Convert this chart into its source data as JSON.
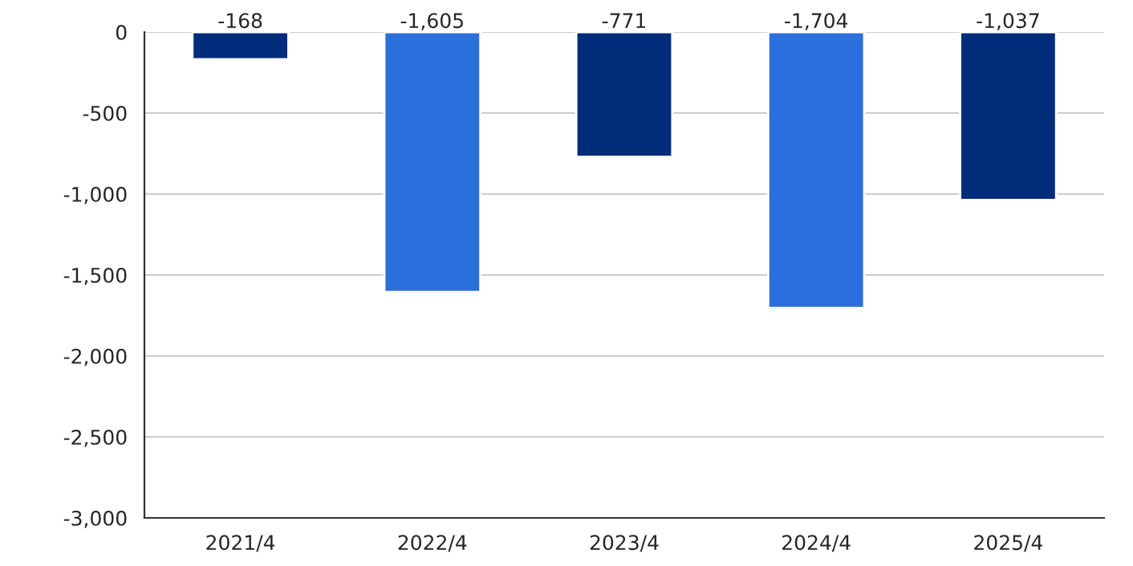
{
  "chart_data": {
    "type": "bar",
    "categories": [
      "2021/4",
      "2022/4",
      "2023/4",
      "2024/4",
      "2025/4"
    ],
    "values": [
      -168,
      -1605,
      -771,
      -1704,
      -1037
    ],
    "colors": [
      "#002d7a",
      "#2a6fdb",
      "#002d7a",
      "#2a6fdb",
      "#002d7a"
    ],
    "value_labels": [
      "-168",
      "-1,605",
      "-771",
      "-1,704",
      "-1,037"
    ],
    "ylim": [
      -3000,
      0
    ],
    "yticks": [
      {
        "value": -3000,
        "label": "-3,000"
      },
      {
        "value": -2500,
        "label": "-2,500"
      },
      {
        "value": -2000,
        "label": "-2,000"
      },
      {
        "value": -1500,
        "label": "-1,500"
      },
      {
        "value": -1000,
        "label": "-1,000"
      },
      -500,
      0
    ],
    "grid": "y"
  }
}
